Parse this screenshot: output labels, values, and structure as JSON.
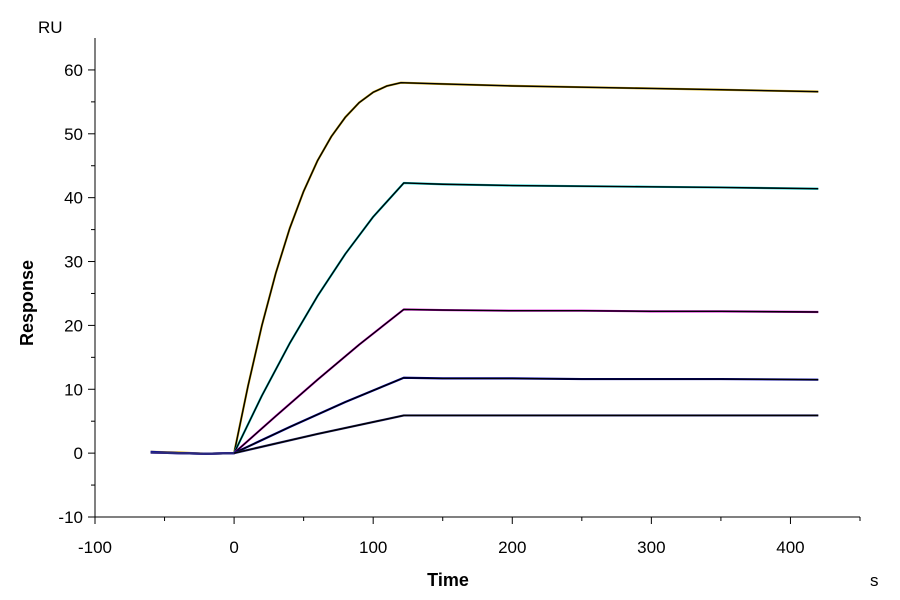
{
  "chart_data": {
    "type": "line",
    "title": "",
    "xlabel": "Time",
    "ylabel": "Response",
    "x_unit": "s",
    "y_unit": "RU",
    "xlim": [
      -100,
      450
    ],
    "ylim": [
      -10,
      65
    ],
    "x_ticks": [
      -100,
      0,
      100,
      200,
      300,
      400
    ],
    "y_ticks": [
      -10,
      0,
      10,
      20,
      30,
      40,
      50,
      60
    ],
    "grid": false,
    "legend": "none",
    "fit_color": "#000000",
    "series": [
      {
        "color": "#c8a000",
        "x": [
          -60,
          -40,
          -20,
          0,
          10,
          20,
          30,
          40,
          50,
          60,
          70,
          80,
          90,
          100,
          110,
          120,
          150,
          200,
          250,
          300,
          350,
          420
        ],
        "values": [
          0.2,
          0.1,
          -0.1,
          0,
          10.5,
          20.0,
          28.2,
          35.2,
          41.0,
          45.8,
          49.6,
          52.6,
          54.9,
          56.5,
          57.5,
          58.0,
          57.8,
          57.5,
          57.3,
          57.1,
          56.9,
          56.6
        ]
      },
      {
        "color": "#00c8c8",
        "x": [
          -60,
          -40,
          -20,
          0,
          20,
          40,
          60,
          80,
          100,
          122,
          150,
          200,
          250,
          300,
          350,
          420
        ],
        "values": [
          0.1,
          0.0,
          -0.1,
          0,
          9.0,
          17.2,
          24.6,
          31.2,
          37.0,
          42.3,
          42.1,
          41.9,
          41.8,
          41.7,
          41.6,
          41.4
        ]
      },
      {
        "color": "#d000d0",
        "x": [
          -60,
          -40,
          -20,
          0,
          30,
          60,
          90,
          122,
          150,
          200,
          250,
          300,
          350,
          420
        ],
        "values": [
          0.1,
          0.0,
          -0.1,
          0,
          5.8,
          11.5,
          17.0,
          22.5,
          22.4,
          22.3,
          22.3,
          22.2,
          22.2,
          22.1
        ]
      },
      {
        "color": "#0000b0",
        "x": [
          -60,
          -40,
          -20,
          0,
          40,
          80,
          122,
          150,
          200,
          250,
          300,
          350,
          420
        ],
        "values": [
          0.2,
          0.0,
          -0.1,
          0,
          4.1,
          8.0,
          11.8,
          11.7,
          11.7,
          11.6,
          11.6,
          11.6,
          11.5
        ]
      },
      {
        "color": "#2a2a7a",
        "x": [
          -60,
          -40,
          -20,
          0,
          60,
          122,
          150,
          200,
          250,
          300,
          350,
          420
        ],
        "values": [
          0.1,
          0.0,
          -0.1,
          0,
          3.0,
          5.9,
          5.9,
          5.9,
          5.9,
          5.9,
          5.9,
          5.9
        ]
      }
    ]
  }
}
